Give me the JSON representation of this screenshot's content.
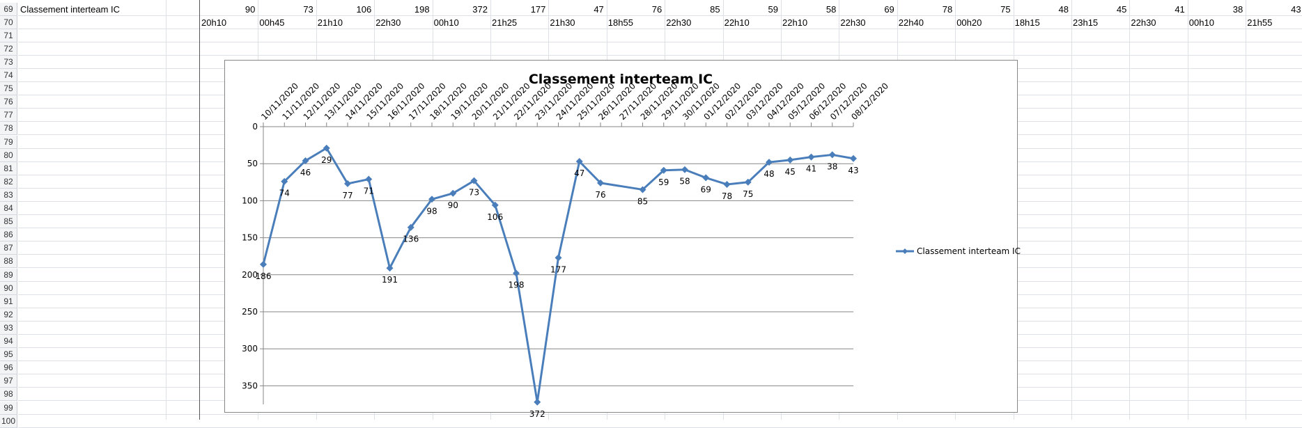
{
  "sheet": {
    "row_numbers": [
      69,
      70,
      71,
      72,
      73,
      74,
      75,
      76,
      77,
      78,
      79,
      80,
      81,
      82,
      83,
      84,
      85,
      86,
      87,
      88,
      89,
      90,
      91,
      92,
      93,
      94,
      95,
      96,
      97,
      98,
      99,
      100
    ],
    "row69_label": "Classement interteam IC",
    "row69_values": [
      "90",
      "73",
      "106",
      "198",
      "372",
      "177",
      "47",
      "76",
      "85",
      "59",
      "58",
      "69",
      "78",
      "75",
      "48",
      "45",
      "41",
      "38",
      "43"
    ],
    "row70_values": [
      "20h10",
      "00h45",
      "21h10",
      "22h30",
      "00h10",
      "21h25",
      "21h30",
      "18h55",
      "22h30",
      "22h10",
      "22h10",
      "22h30",
      "22h40",
      "00h20",
      "18h15",
      "23h15",
      "22h30",
      "00h10",
      "21h55"
    ]
  },
  "chart_data": {
    "type": "line",
    "title": "Classement interteam IC",
    "categories": [
      "10/11/2020",
      "11/11/2020",
      "12/11/2020",
      "13/11/2020",
      "14/11/2020",
      "15/11/2020",
      "16/11/2020",
      "17/11/2020",
      "18/11/2020",
      "19/11/2020",
      "20/11/2020",
      "21/11/2020",
      "22/11/2020",
      "23/11/2020",
      "24/11/2020",
      "25/11/2020",
      "26/11/2020",
      "27/11/2020",
      "28/11/2020",
      "29/11/2020",
      "30/11/2020",
      "01/12/2020",
      "02/12/2020",
      "03/12/2020",
      "04/12/2020",
      "05/12/2020",
      "06/12/2020",
      "07/12/2020",
      "08/12/2020"
    ],
    "series": [
      {
        "name": "Classement interteam IC",
        "color": "#4a7ebb",
        "values": [
          186,
          74,
          46,
          29,
          77,
          71,
          191,
          136,
          98,
          90,
          73,
          106,
          198,
          372,
          177,
          47,
          76,
          null,
          85,
          59,
          58,
          69,
          78,
          75,
          48,
          45,
          41,
          38,
          43
        ]
      }
    ],
    "yaxis": {
      "reversed": true,
      "ylim": [
        0,
        375
      ],
      "ticks": [
        0,
        50,
        100,
        150,
        200,
        250,
        300,
        350
      ]
    },
    "xaxis_position": "top",
    "grid": true,
    "data_labels": true,
    "legend": "right",
    "gridline_color": "#868686"
  }
}
